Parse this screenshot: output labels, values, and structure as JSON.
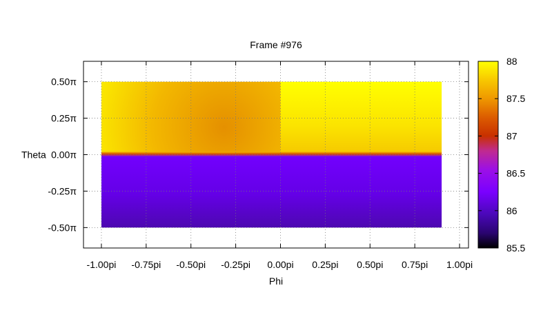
{
  "chart_data": {
    "type": "heatmap",
    "title": "Frame #976",
    "xlabel": "Phi",
    "ylabel": "Theta",
    "xlim": [
      -1.1,
      1.05
    ],
    "ylim": [
      -0.64,
      0.64
    ],
    "x_ticks": [
      -1.0,
      -0.75,
      -0.5,
      -0.25,
      0.0,
      0.25,
      0.5,
      0.75,
      1.0
    ],
    "x_tick_labels": [
      "-1.00pi",
      "-0.75pi",
      "-0.50pi",
      "-0.25pi",
      "0.00pi",
      "0.25pi",
      "0.50pi",
      "0.75pi",
      "1.00pi"
    ],
    "y_ticks": [
      0.5,
      0.25,
      0.0,
      -0.25,
      -0.5
    ],
    "y_tick_labels": [
      "0.50π",
      "0.25π",
      "0.00π",
      "-0.25π",
      "-0.50π"
    ],
    "grid": true,
    "data_extent": {
      "x": [
        -1.0,
        0.9
      ],
      "y": [
        -0.5,
        0.5
      ]
    },
    "colorbar": {
      "range": [
        85.5,
        88
      ],
      "ticks": [
        88,
        87.5,
        87,
        86.5,
        86,
        85.5
      ],
      "tick_labels": [
        "88",
        "87.5",
        "87",
        "86.5",
        "86",
        "85.5"
      ],
      "palette": [
        "#000000",
        "#3b0596",
        "#7a00ff",
        "#b21ec8",
        "#d24010",
        "#f0a000",
        "#ffff00"
      ]
    },
    "regions": [
      {
        "x": [
          -1.0,
          0.0
        ],
        "y": [
          0.0,
          0.5
        ],
        "z_center": 87.4,
        "z_edge": 87.85
      },
      {
        "x": [
          0.0,
          0.9
        ],
        "y": [
          0.0,
          0.5
        ],
        "z_top": 87.95,
        "z_bottom": 87.8
      },
      {
        "x": [
          -1.0,
          0.9
        ],
        "y": [
          -0.5,
          0.0
        ],
        "z_top": 86.15,
        "z_bottom": 85.85
      }
    ]
  }
}
